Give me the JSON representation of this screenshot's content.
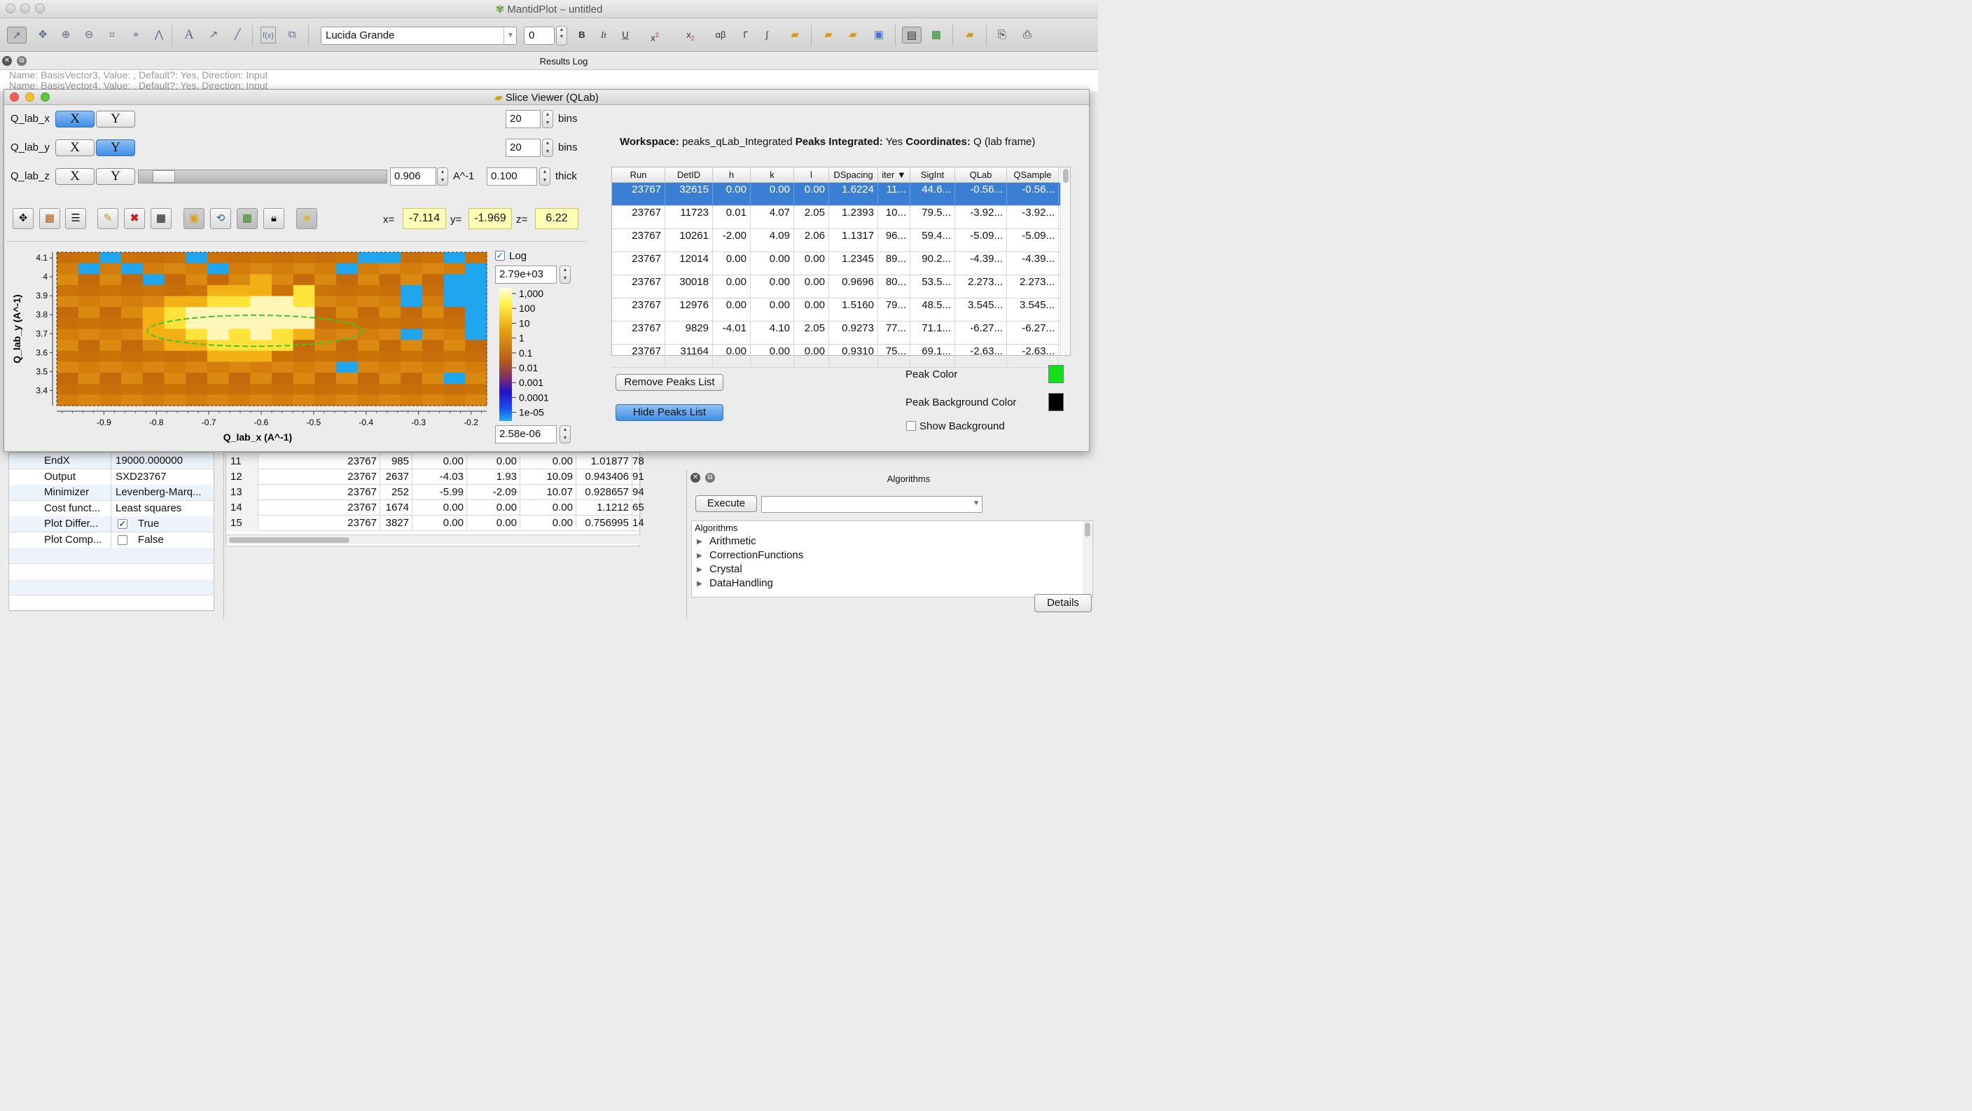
{
  "app": {
    "title": "MantidPlot – untitled"
  },
  "toolbar": {
    "font_name": "Lucida Grande",
    "font_size": "0",
    "bold": "B",
    "italic": "It",
    "underline": "U",
    "superscript": "x",
    "subscript": "x",
    "greek": "αβ",
    "gamma": "Γ",
    "integral": "∫",
    "text_tool": "A",
    "fx": "f(x)"
  },
  "results_log": {
    "title": "Results Log",
    "lines": [
      "Name: BasisVector3, Value: , Default?: Yes, Direction: Input",
      "Name: BasisVector4, Value: , Default?: Yes, Direction: Input"
    ]
  },
  "slice_viewer": {
    "title": "Slice Viewer (QLab)",
    "dims": [
      {
        "name": "Q_lab_x",
        "x": "X",
        "y": "Y",
        "bins": "20",
        "bins_label": "bins"
      },
      {
        "name": "Q_lab_y",
        "x": "X",
        "y": "Y",
        "bins": "20",
        "bins_label": "bins"
      },
      {
        "name": "Q_lab_z",
        "x": "X",
        "y": "Y",
        "value": "0.906",
        "unit": "A^-1",
        "thick": "0.100",
        "thick_label": "thick"
      }
    ],
    "coords": {
      "x_label": "x=",
      "x": "-7.114",
      "y_label": "y=",
      "y": "-1.969",
      "z_label": "z=",
      "z": "6.22"
    },
    "log_label": "Log",
    "color_max": "2.79e+03",
    "color_min": "2.58e-06",
    "colorbar_ticks": [
      "1,000",
      "100",
      "10",
      "1",
      "0.1",
      "0.01",
      "0.001",
      "0.0001",
      "1e-05"
    ],
    "workspace": {
      "workspace_label": "Workspace:",
      "workspace": "peaks_qLab_Integrated",
      "integrated_label": "Peaks Integrated:",
      "integrated": "Yes",
      "coords_label": "Coordinates:",
      "coords": "Q (lab frame)"
    },
    "peaks_table": {
      "headers": [
        "Run",
        "DetID",
        "h",
        "k",
        "l",
        "DSpacing",
        "iter ▼",
        "SigInt",
        "QLab",
        "QSample"
      ],
      "rows": [
        [
          "23767",
          "32615",
          "0.00",
          "0.00",
          "0.00",
          "1.6224",
          "11...",
          "44.6...",
          "-0.56...",
          "-0.56..."
        ],
        [
          "23767",
          "11723",
          "0.01",
          "4.07",
          "2.05",
          "1.2393",
          "10...",
          "79.5...",
          "-3.92...",
          "-3.92..."
        ],
        [
          "23767",
          "10261",
          "-2.00",
          "4.09",
          "2.06",
          "1.1317",
          "96...",
          "59.4...",
          "-5.09...",
          "-5.09..."
        ],
        [
          "23767",
          "12014",
          "0.00",
          "0.00",
          "0.00",
          "1.2345",
          "89...",
          "90.2...",
          "-4.39...",
          "-4.39..."
        ],
        [
          "23767",
          "30018",
          "0.00",
          "0.00",
          "0.00",
          "0.9696",
          "80...",
          "53.5...",
          "2.273...",
          "2.273..."
        ],
        [
          "23767",
          "12976",
          "0.00",
          "0.00",
          "0.00",
          "1.5160",
          "79...",
          "48.5...",
          "3.545...",
          "3.545..."
        ],
        [
          "23767",
          "9829",
          "-4.01",
          "4.10",
          "2.05",
          "0.9273",
          "77...",
          "71.1...",
          "-6.27...",
          "-6.27..."
        ],
        [
          "23767",
          "31164",
          "0.00",
          "0.00",
          "0.00",
          "0.9310",
          "75...",
          "69.1...",
          "-2.63...",
          "-2.63..."
        ]
      ]
    },
    "buttons": {
      "remove_peaks": "Remove Peaks List",
      "hide_peaks": "Hide Peaks List"
    },
    "peak_color_label": "Peak Color",
    "peak_color": "#12e01a",
    "peak_bg_label": "Peak Background Color",
    "peak_bg_color": "#000000",
    "show_background": "Show Background"
  },
  "chart_data": {
    "type": "heatmap",
    "xlabel": "Q_lab_x (A^-1)",
    "ylabel": "Q_lab_y (A^-1)",
    "xticks": [
      "-0.9",
      "-0.8",
      "-0.7",
      "-0.6",
      "-0.5",
      "-0.4",
      "-0.3",
      "-0.2"
    ],
    "yticks": [
      "4.1",
      "4",
      "3.9",
      "3.8",
      "3.7",
      "3.6",
      "3.5",
      "3.4"
    ],
    "xlim": [
      -0.99,
      -0.17
    ],
    "ylim": [
      3.32,
      4.13
    ],
    "log_scale": true,
    "grid_cols": 20,
    "grid_rows": 14,
    "levels": [
      "22C222A2222222AA22A2",
      "2C2A222A22222C22222C",
      "2222C2222322222222CC",
      "2222222333242222A2CC",
      "2222233445542222A2CC",
      "2222345555552222222C",
      "2222345555552222222C",
      "2222334545432222A22C",
      "22222334444222222222",
      "22222223332222222222",
      "2222222222222A222222",
      "222222222222222222A2",
      "22222222222222222222",
      "22222222222222222222"
    ],
    "peak_ellipse": {
      "cx": -0.612,
      "cy": 3.715,
      "rx": 0.205,
      "ry": 0.082,
      "color": "#3fc62a"
    }
  },
  "bottom": {
    "properties": [
      {
        "name": "EndX",
        "value": "19000.000000"
      },
      {
        "name": "Output",
        "value": "SXD23767"
      },
      {
        "name": "Minimizer",
        "value": "Levenberg-Marq..."
      },
      {
        "name": "Cost funct...",
        "value": "Least squares"
      },
      {
        "name": "Plot Differ...",
        "value": "True",
        "checked": "✓"
      },
      {
        "name": "Plot Comp...",
        "value": "False",
        "checked": ""
      }
    ],
    "table_rows": [
      [
        "11",
        "23767",
        "985",
        "0.00",
        "0.00",
        "0.00",
        "1.01877",
        "78"
      ],
      [
        "12",
        "23767",
        "2637",
        "-4.03",
        "1.93",
        "10.09",
        "0.943406",
        "91"
      ],
      [
        "13",
        "23767",
        "252",
        "-5.99",
        "-2.09",
        "10.07",
        "0.928657",
        "94"
      ],
      [
        "14",
        "23767",
        "1674",
        "0.00",
        "0.00",
        "0.00",
        "1.1212",
        "65"
      ],
      [
        "15",
        "23767",
        "3827",
        "0.00",
        "0.00",
        "0.00",
        "0.756995",
        "14"
      ]
    ],
    "algorithms": {
      "title": "Algorithms",
      "execute": "Execute",
      "tree_header": "Algorithms",
      "items": [
        "Arithmetic",
        "CorrectionFunctions",
        "Crystal",
        "DataHandling"
      ],
      "details": "Details"
    }
  },
  "colors": {
    "selection": "#3b7fd4",
    "button_blue": "#3f8ee6"
  }
}
